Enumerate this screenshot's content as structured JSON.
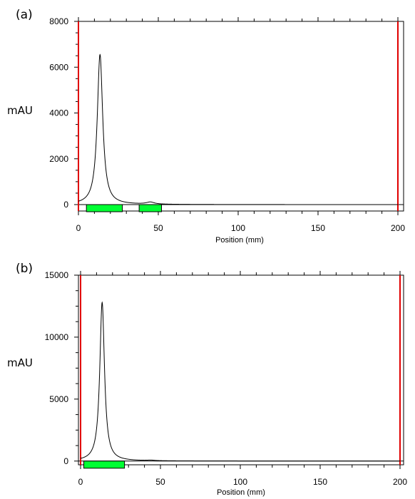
{
  "chart_data": [
    {
      "type": "line",
      "panel_label": "(a)",
      "title": "",
      "xlabel": "Position (mm)",
      "ylabel": "mAU",
      "xlim": [
        0,
        200
      ],
      "ylim": [
        -280,
        8000
      ],
      "x_ticks": [
        0,
        50,
        100,
        150,
        200
      ],
      "y_ticks": [
        0,
        2000,
        4000,
        6000,
        8000
      ],
      "grid": false,
      "legend": "none",
      "trace_color": "#000000",
      "marker_color": "#e00000",
      "band_color": "#00ff33",
      "markers": [
        0,
        200
      ],
      "bands": [
        [
          5,
          27.5
        ],
        [
          38,
          52
        ]
      ],
      "series": [
        {
          "peaks": [
            {
              "center": 13.5,
              "height": 6550,
              "width": 2.2
            },
            {
              "center": 45,
              "height": 90,
              "width": 3.2
            }
          ]
        }
      ]
    },
    {
      "type": "line",
      "panel_label": "(b)",
      "title": "",
      "xlabel": "Position (mm)",
      "ylabel": "mAU",
      "xlim": [
        0,
        200
      ],
      "ylim": [
        -300,
        15000
      ],
      "x_ticks": [
        0,
        50,
        100,
        150,
        200
      ],
      "y_ticks": [
        0,
        5000,
        10000,
        15000
      ],
      "grid": false,
      "legend": "none",
      "trace_color": "#000000",
      "marker_color": "#e00000",
      "band_color": "#00ff33",
      "markers": [
        0,
        200
      ],
      "bands": [
        [
          2,
          27.5
        ]
      ],
      "series": [
        {
          "peaks": [
            {
              "center": 13.5,
              "height": 12800,
              "width": 1.9
            },
            {
              "center": 44,
              "height": 40,
              "width": 3.0
            }
          ]
        }
      ]
    }
  ]
}
